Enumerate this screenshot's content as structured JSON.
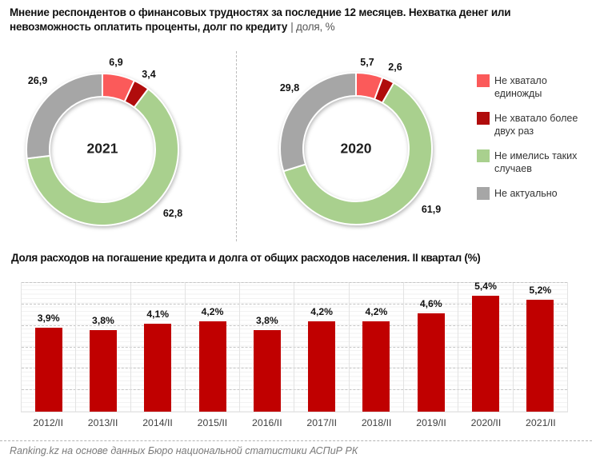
{
  "header": {
    "line1": "Мнение респондентов о финансовых трудностях за последние 12 месяцев. Нехватка денег или",
    "line2_bold": "невозможность оплатить проценты, долг по кредиту",
    "line2_suffix": "| доля, %"
  },
  "colors": {
    "lacked_once": "#FB5A5A",
    "lacked_more": "#B00C0C",
    "no_cases": "#A9D08E",
    "not_relevant": "#A6A6A6",
    "bar": "#C00000"
  },
  "legend": {
    "items": [
      {
        "label": "Не хватало единожды",
        "color_key": "lacked_once"
      },
      {
        "label": "Не хватало более двух раз",
        "color_key": "lacked_more"
      },
      {
        "label": "Не имелись таких случаев",
        "color_key": "no_cases"
      },
      {
        "label": "Не актуально",
        "color_key": "not_relevant"
      }
    ]
  },
  "chart_data": [
    {
      "type": "pie",
      "subtype": "donut",
      "center_label": "2021",
      "labels": [
        "Не хватало единожды",
        "Не хватало более двух раз",
        "Не имелись таких случаев",
        "Не актуально"
      ],
      "values": [
        6.9,
        3.4,
        62.8,
        26.9
      ],
      "value_labels": [
        "6,9",
        "3,4",
        "62,8",
        "26,9"
      ],
      "color_keys": [
        "lacked_once",
        "lacked_more",
        "no_cases",
        "not_relevant"
      ],
      "start_angle_deg": 0,
      "direction": "clockwise",
      "legend_position": "right"
    },
    {
      "type": "pie",
      "subtype": "donut",
      "center_label": "2020",
      "labels": [
        "Не хватало единожды",
        "Не хватало более двух раз",
        "Не имелись таких случаев",
        "Не актуально"
      ],
      "values": [
        5.7,
        2.6,
        61.9,
        29.8
      ],
      "value_labels": [
        "5,7",
        "2,6",
        "61,9",
        "29,8"
      ],
      "color_keys": [
        "lacked_once",
        "lacked_more",
        "no_cases",
        "not_relevant"
      ],
      "start_angle_deg": 0,
      "direction": "clockwise",
      "legend_position": "right"
    },
    {
      "type": "bar",
      "title": "Доля расходов на погашение кредита и долга от общих расходов населения. II квартал (%)",
      "categories": [
        "2012/II",
        "2013/II",
        "2014/II",
        "2015/II",
        "2016/II",
        "2017/II",
        "2018/II",
        "2019/II",
        "2020/II",
        "2021/II"
      ],
      "values": [
        3.9,
        3.8,
        4.1,
        4.2,
        3.8,
        4.2,
        4.2,
        4.6,
        5.4,
        5.2
      ],
      "value_labels": [
        "3,9%",
        "3,8%",
        "4,1%",
        "4,2%",
        "3,8%",
        "4,2%",
        "4,2%",
        "4,6%",
        "5,4%",
        "5,2%"
      ],
      "xlabel": "",
      "ylabel": "",
      "ylim": [
        0,
        6
      ],
      "gridlines": {
        "major_step": 1,
        "minor_step": 0.2,
        "major_style": "dashed",
        "minor_style": "solid"
      },
      "legend_position": "none"
    }
  ],
  "footer": {
    "source": "Ranking.kz на основе данных Бюро национальной статистики АСПиР РК"
  }
}
